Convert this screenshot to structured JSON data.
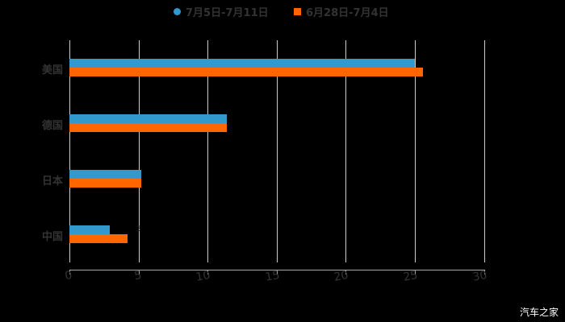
{
  "chart_data": {
    "type": "bar",
    "orientation": "horizontal",
    "title": "",
    "categories": [
      "美国",
      "德国",
      "日本",
      "中国"
    ],
    "series": [
      {
        "name": "7月5日-7月11日",
        "color": "#3399cc",
        "marker": "circle",
        "values": [
          25.0,
          11.4,
          5.2,
          2.9
        ]
      },
      {
        "name": "6月28日-7月4日",
        "color": "#ff6600",
        "marker": "square",
        "values": [
          25.6,
          11.4,
          5.2,
          4.2
        ]
      }
    ],
    "xlabel": "",
    "ylabel": "",
    "xlim": [
      0,
      30
    ],
    "xticks": [
      0,
      5,
      10,
      15,
      20,
      25,
      30
    ],
    "grid": true,
    "legend_position": "top",
    "annotations": [
      {
        "text": "3",
        "category": "中国"
      }
    ]
  },
  "legend": [
    {
      "label": "7月5日-7月11日",
      "color": "#3399cc"
    },
    {
      "label": "6月28日-7月4日",
      "color": "#ff6600"
    }
  ],
  "watermark": "汽车之家"
}
